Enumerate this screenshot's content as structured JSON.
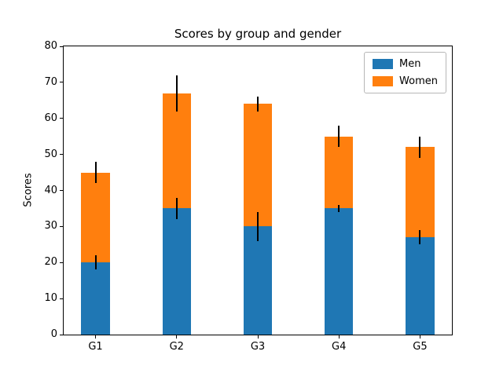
{
  "chart_data": {
    "type": "bar",
    "stacked": true,
    "title": "Scores by group and gender",
    "xlabel": "",
    "ylabel": "Scores",
    "categories": [
      "G1",
      "G2",
      "G3",
      "G4",
      "G5"
    ],
    "series": [
      {
        "name": "Men",
        "color": "#1f77b4",
        "values": [
          20,
          35,
          30,
          35,
          27
        ],
        "yerr": [
          2,
          3,
          4,
          1,
          2
        ]
      },
      {
        "name": "Women",
        "color": "#ff7f0e",
        "values": [
          25,
          32,
          34,
          20,
          25
        ],
        "yerr": [
          3,
          5,
          2,
          3,
          3
        ]
      }
    ],
    "totals": [
      45,
      67,
      64,
      55,
      52
    ],
    "ylim": [
      0,
      80
    ],
    "yticks": [
      0,
      10,
      20,
      30,
      40,
      50,
      60,
      70,
      80
    ],
    "bar_width_data_units": 0.35,
    "grid": false,
    "legend_position": "upper right",
    "error_bar_color": "#000000",
    "background_color": "#ffffff"
  }
}
